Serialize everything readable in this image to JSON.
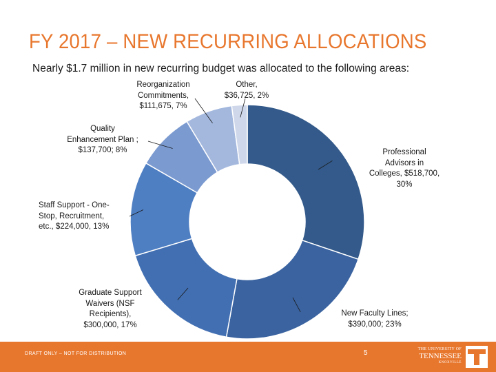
{
  "title": "FY 2017 – NEW RECURRING ALLOCATIONS",
  "subtitle": "Nearly $1.7 million in new recurring budget was allocated to the following areas:",
  "chart_data": {
    "type": "pie",
    "variant": "donut",
    "slices": [
      {
        "name": "Professional Advisors in Colleges",
        "value": 518700,
        "percent": 30,
        "label": "Professional\nAdvisors in\nColleges, $518,700,\n30%",
        "color": "#335a8a"
      },
      {
        "name": "New Faculty Lines",
        "value": 390000,
        "percent": 23,
        "label": "New Faculty Lines;\n$390,000; 23%",
        "color": "#3a63a0"
      },
      {
        "name": "Graduate Support Waivers (NSF Recipients)",
        "value": 300000,
        "percent": 17,
        "label": "Graduate Support\nWaivers (NSF\nRecipients),\n$300,000, 17%",
        "color": "#426fb2"
      },
      {
        "name": "Staff Support - One-Stop, Recruitment, etc.",
        "value": 224000,
        "percent": 13,
        "label": "Staff Support - One-\nStop, Recruitment,\netc., $224,000, 13%",
        "color": "#4f7fc3"
      },
      {
        "name": "Quality Enhancement Plan",
        "value": 137700,
        "percent": 8,
        "label": "Quality\nEnhancement Plan ;\n$137,700; 8%",
        "color": "#7b9ad0"
      },
      {
        "name": "Reorganization Commitments",
        "value": 111675,
        "percent": 7,
        "label": "Reorganization\nCommitments,\n$111,675, 7%",
        "color": "#a4b8de"
      },
      {
        "name": "Other",
        "value": 36725,
        "percent": 2,
        "label": "Other,\n$36,725, 2%",
        "color": "#cfd8ea"
      }
    ]
  },
  "footer": {
    "note": "DRAFT ONLY – NOT FOR DISTRIBUTION",
    "page": "5",
    "logo_line1": "THE UNIVERSITY OF",
    "logo_line2": "TENNESSEE",
    "logo_line3": "KNOXVILLE",
    "logo_mark": "T"
  }
}
